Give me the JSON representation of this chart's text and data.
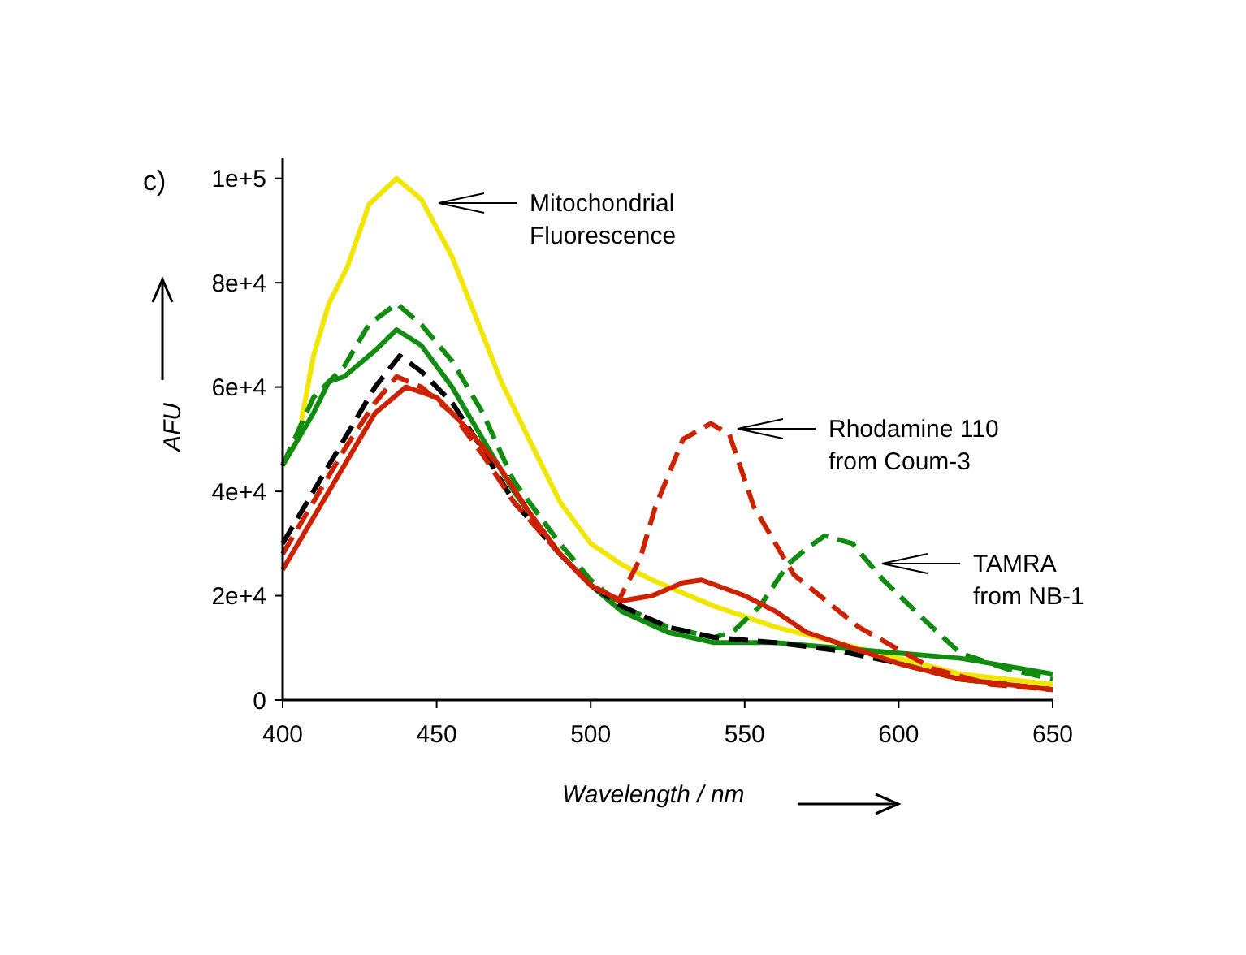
{
  "chart_data": {
    "type": "line",
    "title": "c)",
    "xlabel": "Wavelength / nm",
    "ylabel": "AFU",
    "xlim": [
      400,
      650
    ],
    "xticks": [
      400,
      450,
      500,
      550,
      600,
      650
    ],
    "ylim": [
      0,
      104000
    ],
    "yticks": [
      {
        "value": 0,
        "label": "0"
      },
      {
        "value": 20000,
        "label": "2e+4"
      },
      {
        "value": 40000,
        "label": "4e+4"
      },
      {
        "value": 60000,
        "label": "6e+4"
      },
      {
        "value": 80000,
        "label": "8e+4"
      },
      {
        "value": 100000,
        "label": "1e+5"
      }
    ],
    "grid": false,
    "marker": "none",
    "series": [
      {
        "color": "#f2e600",
        "line_style": "solid",
        "x": [
          400,
          405,
          410,
          415,
          421,
          428,
          437,
          445,
          455,
          465,
          471,
          480,
          490,
          500,
          510,
          520,
          540,
          560,
          580,
          600,
          620,
          650
        ],
        "values": [
          45000,
          50000,
          66000,
          76000,
          83000,
          95000,
          100000,
          96000,
          85000,
          70000,
          61000,
          50000,
          38000,
          30000,
          26000,
          23000,
          18000,
          14000,
          11000,
          8000,
          5000,
          3000
        ]
      },
      {
        "color": "#118c11",
        "line_style": "solid",
        "x": [
          400,
          410,
          415,
          420,
          430,
          437,
          445,
          455,
          465,
          475,
          490,
          500,
          510,
          525,
          540,
          560,
          580,
          600,
          620,
          650
        ],
        "values": [
          45000,
          55000,
          61000,
          62000,
          67000,
          71000,
          68000,
          60000,
          50000,
          40000,
          28000,
          22000,
          17000,
          13000,
          11000,
          11000,
          10000,
          9000,
          8000,
          5000
        ]
      },
      {
        "color": "#118c11",
        "line_style": "dashed",
        "x": [
          400,
          410,
          420,
          428,
          437,
          445,
          455,
          465,
          475,
          490,
          500,
          510,
          525,
          540,
          546,
          555,
          564,
          570,
          576,
          585,
          595,
          609,
          620,
          635,
          650
        ],
        "values": [
          45000,
          58000,
          64000,
          72000,
          76000,
          72000,
          65000,
          55000,
          42000,
          30000,
          23000,
          18000,
          14000,
          12000,
          13000,
          18000,
          26000,
          29000,
          31500,
          30000,
          23000,
          15000,
          9000,
          6000,
          4000
        ]
      },
      {
        "color": "#000000",
        "line_style": "dashed",
        "x": [
          400,
          410,
          420,
          430,
          438,
          445,
          455,
          465,
          475,
          490,
          500,
          510,
          525,
          540,
          560,
          580,
          600,
          620,
          650
        ],
        "values": [
          30000,
          40000,
          50000,
          60000,
          66000,
          63000,
          57000,
          48000,
          38000,
          28000,
          22000,
          18000,
          14000,
          12000,
          11000,
          9500,
          7000,
          4000,
          2000
        ]
      },
      {
        "color": "#cc2200",
        "line_style": "solid",
        "x": [
          400,
          410,
          420,
          430,
          440,
          450,
          460,
          470,
          480,
          490,
          500,
          510,
          520,
          530,
          536,
          550,
          560,
          570,
          580,
          600,
          620,
          650
        ],
        "values": [
          25000,
          35000,
          45000,
          55000,
          60000,
          58000,
          52000,
          45000,
          36000,
          28000,
          22000,
          19000,
          20000,
          22500,
          23000,
          20000,
          17000,
          13000,
          11000,
          7000,
          4000,
          2000
        ]
      },
      {
        "color": "#cc2200",
        "line_style": "dashed",
        "x": [
          400,
          410,
          420,
          430,
          437,
          445,
          455,
          465,
          475,
          490,
          500,
          509,
          516,
          521,
          530,
          539,
          545,
          553,
          566,
          587,
          611,
          630,
          650
        ],
        "values": [
          28000,
          38000,
          48000,
          57000,
          62000,
          60000,
          55000,
          47000,
          38000,
          28000,
          22000,
          19000,
          27000,
          37000,
          50000,
          53000,
          51000,
          37000,
          24000,
          14000,
          6000,
          3000,
          2000
        ]
      }
    ],
    "annotations": [
      "Mitochondrial\nFluorescence",
      "Rhodamine 110\nfrom Coum-3",
      "TAMRA\nfrom NB-1"
    ]
  }
}
